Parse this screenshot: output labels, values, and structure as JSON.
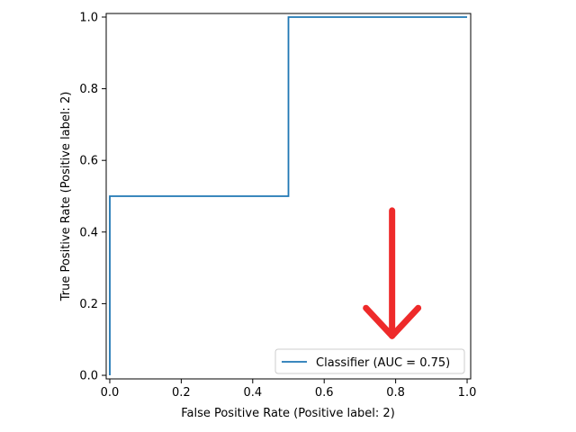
{
  "chart_data": {
    "type": "line",
    "title": "",
    "xlabel": "False Positive Rate (Positive label: 2)",
    "ylabel": "True Positive Rate (Positive label: 2)",
    "xlim": [
      -0.01,
      1.01
    ],
    "ylim": [
      -0.01,
      1.01
    ],
    "xticks": [
      "0.0",
      "0.2",
      "0.4",
      "0.6",
      "0.8",
      "1.0"
    ],
    "yticks": [
      "0.0",
      "0.2",
      "0.4",
      "0.6",
      "0.8",
      "1.0"
    ],
    "grid": false,
    "legend_position": "lower-right",
    "series": [
      {
        "name": "Classifier (AUC = 0.75)",
        "color": "#1f77b4",
        "x": [
          0.0,
          0.0,
          0.5,
          0.5,
          1.0
        ],
        "y": [
          0.0,
          0.5,
          0.5,
          1.0,
          1.0
        ]
      }
    ],
    "annotations": [
      {
        "type": "arrow",
        "direction": "down",
        "color": "#ee2a2a",
        "x": 0.79,
        "y_start": 0.46,
        "y_end": 0.11
      }
    ]
  }
}
